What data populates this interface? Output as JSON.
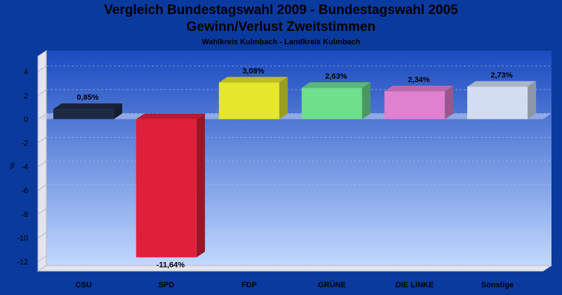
{
  "chart_data": {
    "type": "bar",
    "title": "Vergleich Bundestagswahl 2009 - Bundestagswahl 2005",
    "subtitle": "Gewinn/Verlust Zweitstimmen",
    "caption": "Wahlkreis Kulmbach - Landkreis Kulmbach",
    "xlabel": "",
    "ylabel": "%",
    "ylim": [
      -12.8,
      5.3
    ],
    "yticks": [
      4,
      2,
      0,
      -2,
      -4,
      -6,
      -8,
      -10,
      -12
    ],
    "categories": [
      "CSU",
      "SPD",
      "FDP",
      "GRÜNE",
      "DIE LINKE",
      "Sonstige"
    ],
    "values": [
      0.85,
      -11.64,
      3.08,
      2.63,
      2.34,
      2.73
    ],
    "labels": [
      "0,85%",
      "-11,64%",
      "3,08%",
      "2,63%",
      "2,34%",
      "2,73%"
    ],
    "colors": [
      "#1c2a44",
      "#e0203a",
      "#e6e62a",
      "#6ee08c",
      "#e080d0",
      "#d2dcf2"
    ],
    "grid": true
  }
}
